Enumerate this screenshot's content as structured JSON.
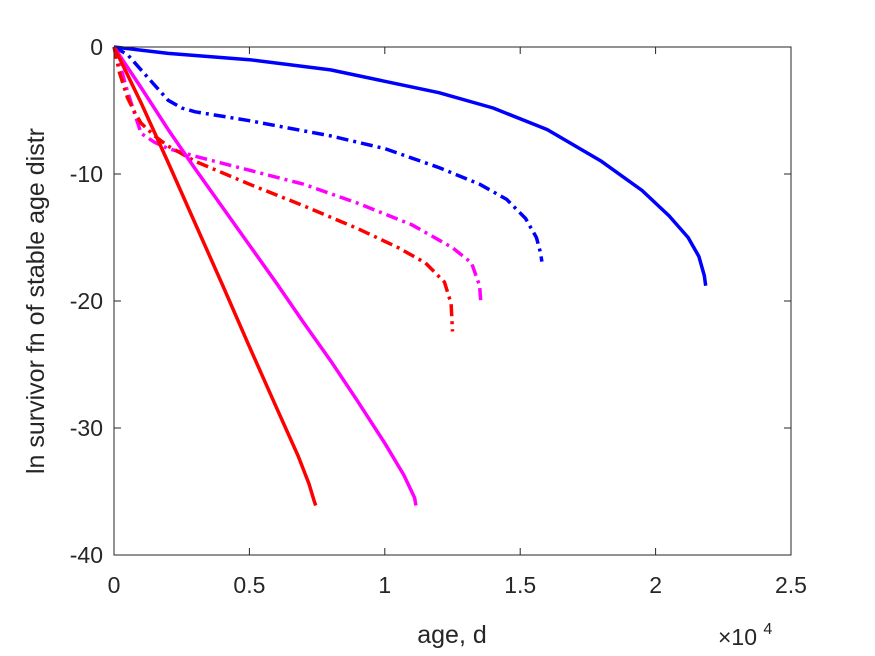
{
  "chart_data": {
    "type": "line",
    "title": "",
    "xlabel": "age, d",
    "ylabel": "ln survivor fn of stable age distr",
    "x_exponent_label": {
      "base": "×10",
      "exponent": "4"
    },
    "xlim": [
      0,
      25000
    ],
    "ylim": [
      -40,
      0
    ],
    "xticks": [
      0,
      5000,
      10000,
      15000,
      20000,
      25000
    ],
    "xtick_labels": [
      "0",
      "0.5",
      "1",
      "1.5",
      "2",
      "2.5"
    ],
    "yticks": [
      0,
      -10,
      -20,
      -30,
      -40
    ],
    "ytick_labels": [
      "0",
      "-10",
      "-20",
      "-30",
      "-40"
    ],
    "grid": false,
    "legend": "none",
    "series": [
      {
        "color": "#0000ff",
        "style": "solid",
        "x": [
          0,
          2000,
          5000,
          8000,
          10000,
          12000,
          14000,
          16000,
          18000,
          19500,
          20500,
          21200,
          21600,
          21800,
          21850
        ],
        "y": [
          0,
          -0.5,
          -1,
          -1.8,
          -2.7,
          -3.6,
          -4.8,
          -6.5,
          -9.0,
          -11.3,
          -13.3,
          -15.0,
          -16.5,
          -18.0,
          -18.8
        ]
      },
      {
        "color": "#0000ff",
        "style": "dashdot",
        "x": [
          0,
          500,
          1000,
          1500,
          2000,
          2500,
          3000,
          5000,
          8000,
          10000,
          12000,
          13500,
          14500,
          15200,
          15600,
          15750,
          15800
        ],
        "y": [
          0,
          -0.6,
          -1.8,
          -3.0,
          -4.2,
          -4.8,
          -5.1,
          -5.8,
          -7.0,
          -8.0,
          -9.5,
          -10.8,
          -12.0,
          -13.5,
          -15.0,
          -16.2,
          -16.9
        ]
      },
      {
        "color": "#ff00ff",
        "style": "dashdot",
        "x": [
          0,
          300,
          500,
          800,
          1000,
          1500,
          2000,
          3000,
          5000,
          7000,
          9000,
          11000,
          12500,
          13200,
          13500,
          13550
        ],
        "y": [
          0,
          -2.0,
          -3.5,
          -5.5,
          -6.8,
          -7.5,
          -8.0,
          -8.6,
          -9.7,
          -10.8,
          -12.3,
          -14.0,
          -15.8,
          -17.0,
          -18.8,
          -20.2
        ]
      },
      {
        "color": "#ff0000",
        "style": "dashdot",
        "x": [
          0,
          200,
          500,
          800,
          1000,
          1500,
          2000,
          3000,
          5000,
          7000,
          9000,
          10500,
          11500,
          12200,
          12450,
          12500
        ],
        "y": [
          0,
          -2.0,
          -4.0,
          -5.3,
          -6.0,
          -7.0,
          -7.8,
          -9.0,
          -10.8,
          -12.5,
          -14.3,
          -15.8,
          -17.0,
          -18.5,
          -20.2,
          -22.4
        ]
      },
      {
        "color": "#ff00ff",
        "style": "solid",
        "x": [
          0,
          1000,
          2000,
          3000,
          4000,
          5000,
          6000,
          7000,
          8000,
          9000,
          10000,
          10700,
          11100,
          11150
        ],
        "y": [
          0,
          -3.2,
          -6.5,
          -9.6,
          -12.6,
          -15.6,
          -18.6,
          -21.7,
          -24.7,
          -27.9,
          -31.2,
          -33.7,
          -35.5,
          -36.1
        ]
      },
      {
        "color": "#ff0000",
        "style": "solid",
        "x": [
          0,
          1000,
          2000,
          3000,
          4000,
          5000,
          6000,
          6800,
          7200,
          7400,
          7450
        ],
        "y": [
          0,
          -4.4,
          -9.1,
          -13.9,
          -18.7,
          -23.6,
          -28.4,
          -32.2,
          -34.4,
          -35.8,
          -36.1
        ]
      }
    ]
  }
}
